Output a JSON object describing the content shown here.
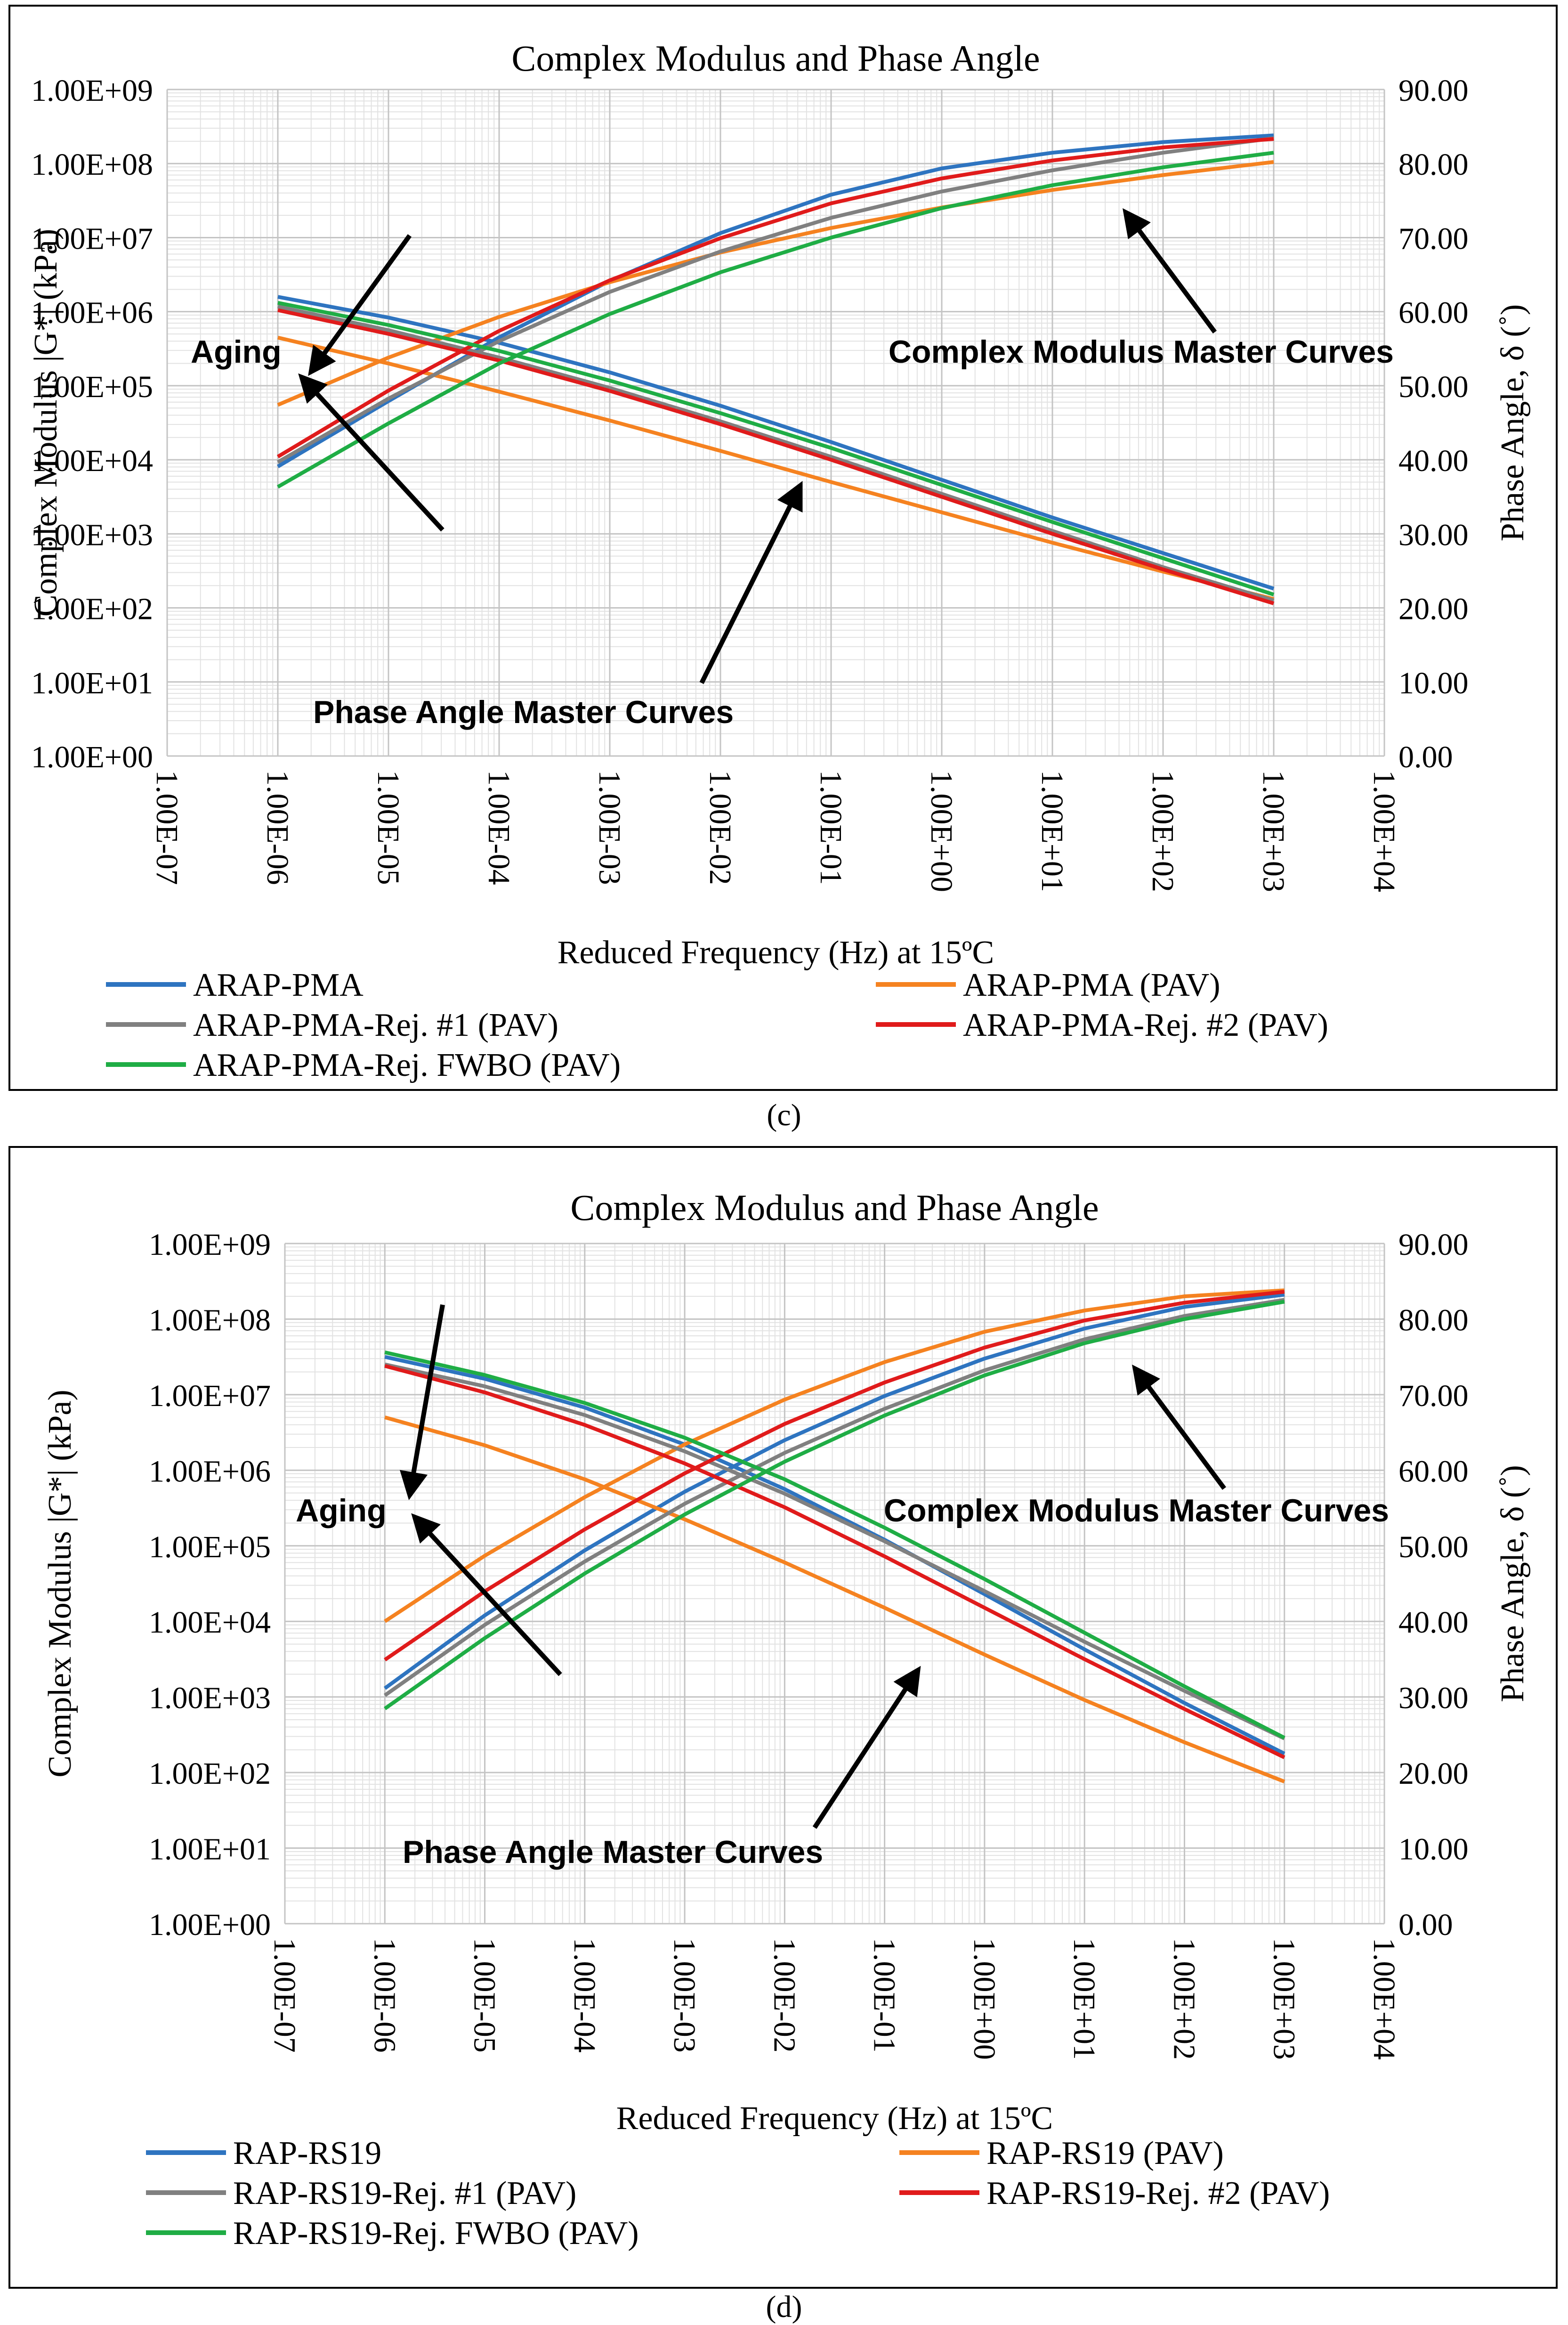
{
  "chart_data": [
    {
      "panel": "c",
      "caption": "(c)",
      "type": "line",
      "title": "Complex Modulus and Phase Angle",
      "xlabel": "Reduced Frequency (Hz) at 15ºC",
      "ylabel": "Complex Modulus |G*| (kPa)",
      "y2label": "Phase Angle, δ (˚)",
      "xscale": "log",
      "yscale": "log",
      "xlim": [
        1e-07,
        10000.0
      ],
      "ylim": [
        1,
        1000000000.0
      ],
      "y2lim": [
        0,
        90
      ],
      "xticks": [
        "1.00E-07",
        "1.00E-06",
        "1.00E-05",
        "1.00E-04",
        "1.00E-03",
        "1.00E-02",
        "1.00E-01",
        "1.00E+00",
        "1.00E+01",
        "1.00E+02",
        "1.00E+03",
        "1.00E+04"
      ],
      "yticks": [
        "1.00E+00",
        "1.00E+01",
        "1.00E+02",
        "1.00E+03",
        "1.00E+04",
        "1.00E+05",
        "1.00E+06",
        "1.00E+07",
        "1.00E+08",
        "1.00E+09"
      ],
      "y2ticks": [
        "0.00",
        "10.00",
        "20.00",
        "30.00",
        "40.00",
        "50.00",
        "60.00",
        "70.00",
        "80.00",
        "90.00"
      ],
      "grid": true,
      "legend_position": "bottom",
      "x": [
        -6,
        -5,
        -4,
        -3,
        -2,
        -1,
        0,
        1,
        2,
        3
      ],
      "series": [
        {
          "name": "ARAP-PMA",
          "color": "#2E74C0",
          "modulus": [
            8100.0,
            62000.0,
            450000.0,
            2600000.0,
            11500000.0,
            38000000.0,
            86000000.0,
            140000000.0,
            195000000.0,
            240000000.0
          ],
          "phase": [
            62.0,
            59.2,
            55.8,
            51.8,
            47.3,
            42.4,
            37.3,
            32.2,
            27.4,
            22.6
          ]
        },
        {
          "name": "ARAP-PMA (PAV)",
          "color": "#F58220",
          "modulus": [
            55000.0,
            240000.0,
            850000.0,
            2500000.0,
            6300000.0,
            13500000.0,
            25500000.0,
            44000000.0,
            70000000.0,
            105000000.0
          ],
          "phase": [
            56.5,
            53.0,
            49.2,
            45.3,
            41.2,
            37.0,
            32.9,
            28.8,
            24.9,
            21.2
          ]
        },
        {
          "name": "ARAP-PMA-Rej. #1 (PAV)",
          "color": "#808080",
          "modulus": [
            9300.0,
            67000.0,
            400000.0,
            1850000.0,
            6500000.0,
            18500000.0,
            42000000.0,
            81000000.0,
            140000000.0,
            220000000.0
          ],
          "phase": [
            60.7,
            57.5,
            53.8,
            49.7,
            45.2,
            40.4,
            35.4,
            30.4,
            25.5,
            21.0
          ]
        },
        {
          "name": "ARAP-PMA-Rej. #2 (PAV)",
          "color": "#E01B1B",
          "modulus": [
            11000.0,
            86000.0,
            550000.0,
            2650000.0,
            9800000.0,
            29000000.0,
            63000000.0,
            110000000.0,
            165000000.0,
            215000000.0
          ],
          "phase": [
            60.2,
            57.0,
            53.4,
            49.3,
            44.8,
            40.0,
            35.0,
            30.0,
            25.2,
            20.6
          ]
        },
        {
          "name": "ARAP-PMA-Rej. FWBO (PAV)",
          "color": "#1FAD45",
          "modulus": [
            4300.0,
            31000.0,
            200000.0,
            930000.0,
            3400000.0,
            10000000.0,
            25000000.0,
            51000000.0,
            89000000.0,
            140000000.0
          ],
          "phase": [
            61.2,
            58.2,
            54.7,
            50.7,
            46.3,
            41.6,
            36.6,
            31.6,
            26.7,
            21.8
          ]
        }
      ],
      "annotations": [
        "Aging",
        "Complex Modulus Master Curves",
        "Phase Angle Master Curves"
      ]
    },
    {
      "panel": "d",
      "caption": "(d)",
      "type": "line",
      "title": "Complex Modulus and Phase Angle",
      "xlabel": "Reduced Frequency (Hz) at 15ºC",
      "ylabel": "Complex Modulus |G*| (kPa)",
      "y2label": "Phase Angle, δ (˚)",
      "xscale": "log",
      "yscale": "log",
      "xlim": [
        1e-07,
        10000.0
      ],
      "ylim": [
        1,
        1000000000.0
      ],
      "y2lim": [
        0,
        90
      ],
      "xticks": [
        "1.00E-07",
        "1.00E-06",
        "1.00E-05",
        "1.00E-04",
        "1.00E-03",
        "1.00E-02",
        "1.00E-01",
        "1.00E+00",
        "1.00E+01",
        "1.00E+02",
        "1.00E+03",
        "1.00E+04"
      ],
      "yticks": [
        "1.00E+00",
        "1.00E+01",
        "1.00E+02",
        "1.00E+03",
        "1.00E+04",
        "1.00E+05",
        "1.00E+06",
        "1.00E+07",
        "1.00E+08",
        "1.00E+09"
      ],
      "y2ticks": [
        "0.00",
        "10.00",
        "20.00",
        "30.00",
        "40.00",
        "50.00",
        "60.00",
        "70.00",
        "80.00",
        "90.00"
      ],
      "grid": true,
      "legend_position": "bottom",
      "x": [
        -6,
        -5,
        -4,
        -3,
        -2,
        -1,
        0,
        1,
        2,
        3
      ],
      "series": [
        {
          "name": "RAP-RS19",
          "color": "#2E74C0",
          "modulus": [
            1300.0,
            12000.0,
            87000.0,
            520000.0,
            2500000.0,
            9600000.0,
            30000000.0,
            75000000.0,
            145000000.0,
            210000000.0
          ],
          "phase": [
            75.0,
            72.1,
            68.3,
            63.4,
            57.5,
            50.8,
            43.6,
            36.3,
            29.2,
            22.5
          ]
        },
        {
          "name": "RAP-RS19 (PAV)",
          "color": "#F58220",
          "modulus": [
            10000.0,
            74000.0,
            440000.0,
            2200000.0,
            8600000.0,
            27000000.0,
            68000000.0,
            130000000.0,
            200000000.0,
            240000000.0
          ],
          "phase": [
            67.0,
            63.3,
            58.8,
            53.5,
            47.8,
            41.8,
            35.6,
            29.6,
            24.0,
            18.8
          ]
        },
        {
          "name": "RAP-RS19-Rej. #1 (PAV)",
          "color": "#808080",
          "modulus": [
            1050.0,
            9000.0,
            62000.0,
            360000.0,
            1700000.0,
            6500000.0,
            21000000.0,
            54000000.0,
            110000000.0,
            180000000.0
          ],
          "phase": [
            74.0,
            71.1,
            67.3,
            62.5,
            56.9,
            50.6,
            44.0,
            37.3,
            30.8,
            24.5
          ]
        },
        {
          "name": "RAP-RS19-Rej. #2 (PAV)",
          "color": "#E01B1B",
          "modulus": [
            3100.0,
            25000.0,
            165000.0,
            910000.0,
            4100000.0,
            14500000.0,
            42000000.0,
            96000000.0,
            165000000.0,
            230000000.0
          ],
          "phase": [
            73.8,
            70.3,
            66.0,
            60.9,
            55.1,
            48.6,
            41.8,
            35.0,
            28.4,
            22.0
          ]
        },
        {
          "name": "RAP-RS19-Rej. FWBO (PAV)",
          "color": "#1FAD45",
          "modulus": [
            700.0,
            6000.0,
            43000.0,
            260000.0,
            1300000.0,
            5300000.0,
            18000000.0,
            48000000.0,
            100000000.0,
            170000000.0
          ],
          "phase": [
            75.6,
            72.6,
            68.9,
            64.3,
            58.8,
            52.4,
            45.6,
            38.5,
            31.4,
            24.6
          ]
        }
      ],
      "annotations": [
        "Aging",
        "Complex Modulus Master Curves",
        "Phase Angle Master Curves"
      ]
    }
  ]
}
